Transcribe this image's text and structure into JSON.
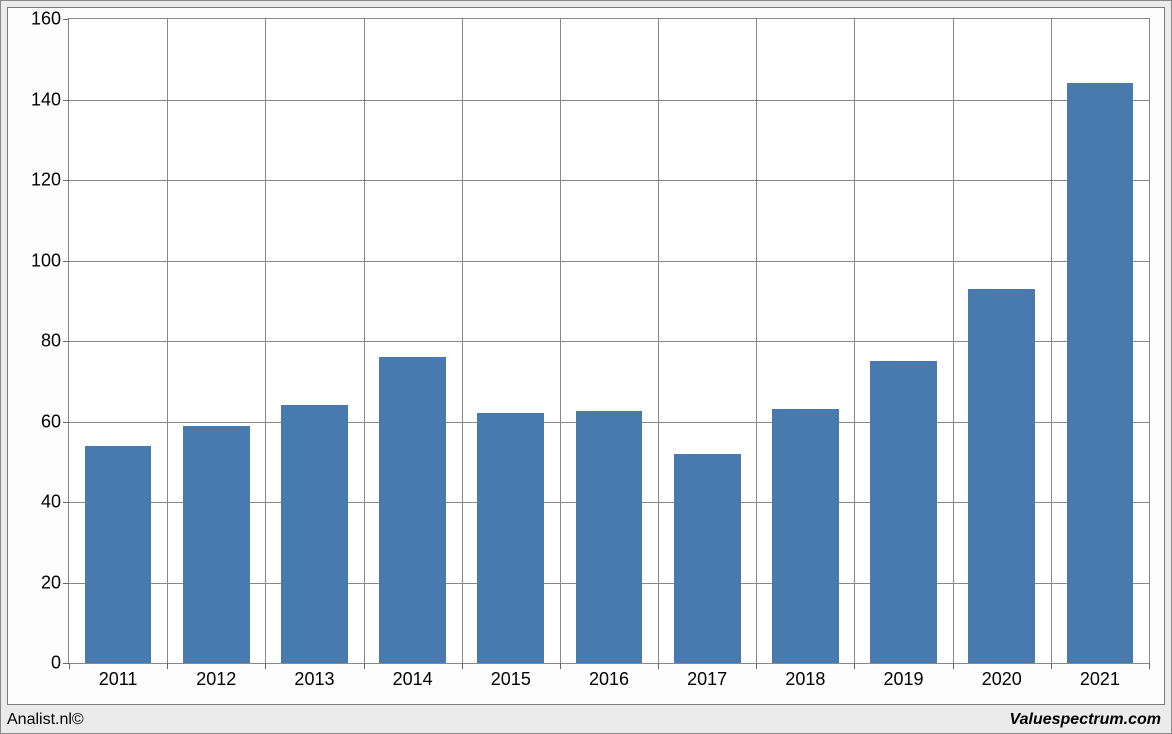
{
  "chart": {
    "type": "bar",
    "categories": [
      "2011",
      "2012",
      "2013",
      "2014",
      "2015",
      "2016",
      "2017",
      "2018",
      "2019",
      "2020",
      "2021"
    ],
    "values": [
      54,
      59,
      64,
      76,
      62,
      62.5,
      52,
      63,
      75,
      93,
      144
    ],
    "bar_color": "#4879af",
    "bar_width": 0.68,
    "ylim": [
      0,
      160
    ],
    "ytick_step": 20,
    "yticks": [
      0,
      20,
      40,
      60,
      80,
      100,
      120,
      140,
      160
    ],
    "label_fontsize": 18,
    "grid_color": "#888888",
    "background_color": "#ffffff",
    "panel_background": "#fdfdfd",
    "outer_background": "#ebebeb",
    "border_color": "#7a7a7a"
  },
  "footer": {
    "left": "Analist.nl©",
    "right": "Valuespectrum.com"
  }
}
